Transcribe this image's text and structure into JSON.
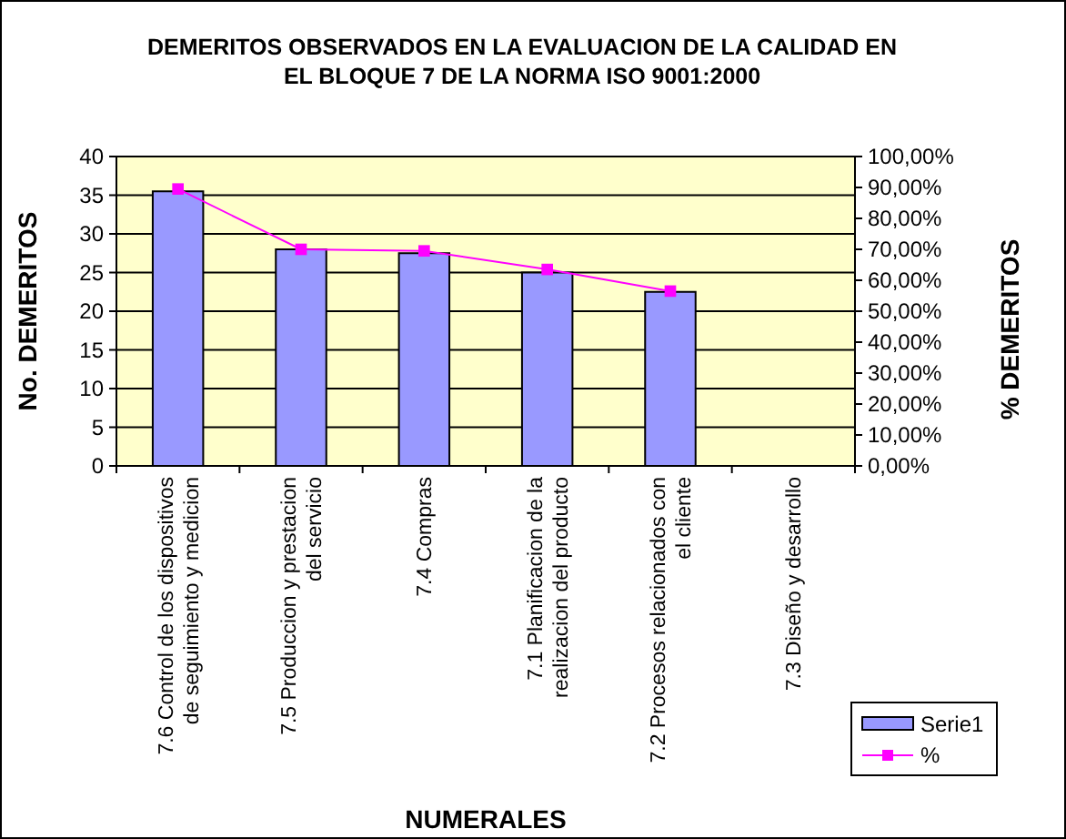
{
  "chart_data": {
    "type": "bar",
    "title": "DEMERITOS OBSERVADOS EN LA EVALUACION DE LA CALIDAD EN\nEL BLOQUE 7 DE LA NORMA ISO 9001:2000",
    "xlabel": "NUMERALES",
    "ylabel": "No. DEMERITOS",
    "y2label": "% DEMERITOS",
    "categories": [
      "7.6 Control de los dispositivos\nde seguimiento y medicion",
      "7.5 Produccion y prestacion\ndel servicio",
      "7.4 Compras",
      "7.1 Planificacion de la\nrealizacion del producto",
      "7.2 Procesos relacionados con\nel cliente",
      "7.3 Diseño y desarrollo"
    ],
    "series": [
      {
        "name": "Serie1",
        "color": "#9999ff",
        "values": [
          35.5,
          28,
          27.5,
          25,
          22.5,
          null
        ]
      },
      {
        "name": "%",
        "type": "line",
        "axis": "y2",
        "color": "#ff00ff",
        "marker": "square",
        "values": [
          89.5,
          70,
          69.5,
          63.5,
          56.5,
          null
        ]
      }
    ],
    "ylim": [
      0,
      40
    ],
    "yticks": [
      0,
      5,
      10,
      15,
      20,
      25,
      30,
      35,
      40
    ],
    "y2lim": [
      0,
      100
    ],
    "y2ticks": [
      {
        "value": 0,
        "label": "0,00%"
      },
      {
        "value": 10,
        "label": "10,00%"
      },
      {
        "value": 20,
        "label": "20,00%"
      },
      {
        "value": 30,
        "label": "30,00%"
      },
      {
        "value": 40,
        "label": "40,00%"
      },
      {
        "value": 50,
        "label": "50,00%"
      },
      {
        "value": 60,
        "label": "60,00%"
      },
      {
        "value": 70,
        "label": "70,00%"
      },
      {
        "value": 80,
        "label": "80,00%"
      },
      {
        "value": 90,
        "label": "90,00%"
      },
      {
        "value": 100,
        "label": "100,00%"
      }
    ],
    "grid": "y",
    "legend": "right"
  }
}
